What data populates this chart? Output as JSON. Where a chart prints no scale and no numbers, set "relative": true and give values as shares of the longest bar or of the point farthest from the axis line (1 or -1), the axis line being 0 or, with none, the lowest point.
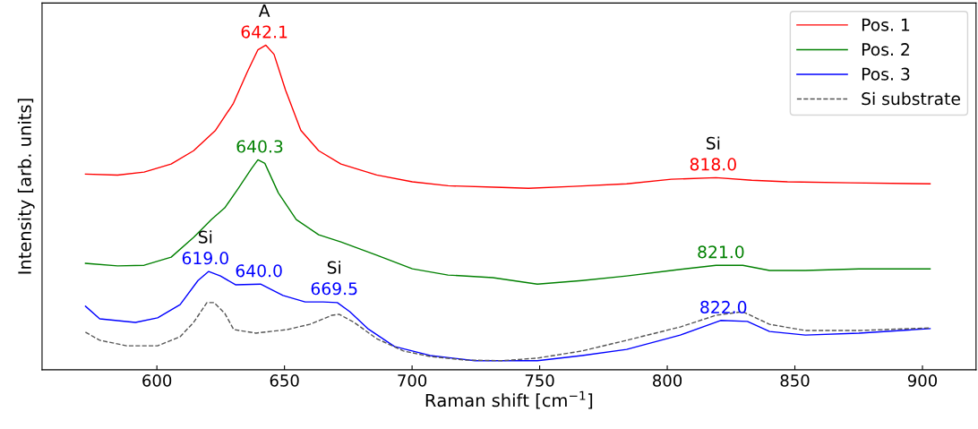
{
  "chart_data": {
    "type": "line",
    "relative": true,
    "xlabel": "Raman shift [cm$^{−1}$]",
    "ylabel": "Intensity [arb. units]",
    "xlim": [
      555,
      921
    ],
    "xticks": [
      600,
      650,
      700,
      750,
      800,
      850,
      900
    ],
    "tick_labels": "x",
    "legend": "top right",
    "grid": false,
    "marker": "none",
    "series": [
      {
        "name": "Pos. 1",
        "color": "#ff0000",
        "line_style": "solid",
        "x": [
          572,
          584.6,
          595,
          605.6,
          614.4,
          623,
          630,
          635.4,
          639.6,
          642.7,
          645.9,
          650.4,
          656.4,
          663.4,
          672.1,
          686.1,
          700.1,
          714.1,
          735.1,
          745.6,
          763.1,
          784.1,
          801.6,
          819.1,
          833.1,
          847.1,
          871.6,
          903
        ],
        "values": [
          0.603,
          0.6,
          0.609,
          0.634,
          0.675,
          0.738,
          0.821,
          0.917,
          0.986,
          1.0,
          0.972,
          0.862,
          0.738,
          0.675,
          0.634,
          0.6,
          0.579,
          0.567,
          0.562,
          0.559,
          0.565,
          0.573,
          0.587,
          0.592,
          0.584,
          0.579,
          0.576,
          0.573
        ]
      },
      {
        "name": "Pos. 2",
        "color": "#008000",
        "line_style": "solid",
        "x": [
          572,
          584.6,
          595,
          605.6,
          614.4,
          621.4,
          626.6,
          631.9,
          637.1,
          639.6,
          642.3,
          647.6,
          654.6,
          663.4,
          672.1,
          686.1,
          700.1,
          714.1,
          731.6,
          749.1,
          766.6,
          784.1,
          801.6,
          819.1,
          829.6,
          840.1,
          854.1,
          875.1,
          903
        ],
        "values": [
          0.328,
          0.32,
          0.322,
          0.347,
          0.408,
          0.463,
          0.499,
          0.559,
          0.62,
          0.647,
          0.636,
          0.545,
          0.463,
          0.416,
          0.394,
          0.353,
          0.311,
          0.292,
          0.284,
          0.264,
          0.275,
          0.289,
          0.306,
          0.322,
          0.322,
          0.306,
          0.306,
          0.311,
          0.311
        ]
      },
      {
        "name": "Pos. 3",
        "color": "#0000ff",
        "line_style": "solid",
        "x": [
          572,
          577.6,
          591.6,
          600.3,
          609.1,
          616.1,
          620.3,
          624.9,
          630.8,
          640.6,
          649.4,
          658.1,
          665.1,
          670.7,
          675.6,
          682.6,
          693.1,
          707.1,
          724.6,
          735.1,
          749.1,
          766.6,
          784.1,
          805.1,
          820.9,
          831.4,
          840.1,
          854.1,
          875.1,
          903
        ],
        "values": [
          0.196,
          0.157,
          0.146,
          0.16,
          0.201,
          0.275,
          0.303,
          0.289,
          0.262,
          0.264,
          0.229,
          0.209,
          0.209,
          0.207,
          0.179,
          0.127,
          0.072,
          0.044,
          0.028,
          0.028,
          0.028,
          0.044,
          0.063,
          0.107,
          0.152,
          0.149,
          0.118,
          0.107,
          0.113,
          0.127
        ]
      },
      {
        "name": "Si substrate",
        "color": "#555555",
        "line_style": "dashed",
        "x": [
          572,
          577.6,
          588.1,
          600.3,
          609.1,
          614.4,
          619.6,
          622.4,
          626.6,
          630.1,
          638.8,
          651.1,
          659.9,
          668.6,
          671.4,
          677.3,
          686.1,
          696.6,
          707.1,
          721.1,
          735.1,
          749.1,
          766.6,
          784.1,
          805.1,
          819.1,
          829.6,
          840.1,
          854.1,
          875.1,
          903
        ],
        "values": [
          0.116,
          0.091,
          0.074,
          0.074,
          0.102,
          0.146,
          0.207,
          0.207,
          0.174,
          0.124,
          0.113,
          0.124,
          0.14,
          0.168,
          0.171,
          0.146,
          0.096,
          0.058,
          0.041,
          0.03,
          0.028,
          0.036,
          0.058,
          0.091,
          0.132,
          0.168,
          0.179,
          0.14,
          0.121,
          0.121,
          0.129
        ]
      }
    ],
    "annotations": [
      {
        "text": "642.1",
        "x": 642.1,
        "y": 1.0
      },
      {
        "text": "A",
        "x": 642.1,
        "y": 1.0
      },
      {
        "text": "818.0",
        "x": 818.0,
        "y": 0.592
      },
      {
        "text": "Si",
        "x": 818.0,
        "y": 0.592
      },
      {
        "text": "640.3",
        "x": 640.3,
        "y": 0.647
      },
      {
        "text": "821.0",
        "x": 821.0,
        "y": 0.322
      },
      {
        "text": "619.0",
        "x": 619.0,
        "y": 0.303
      },
      {
        "text": "Si",
        "x": 619.0,
        "y": 0.303
      },
      {
        "text": "640.0",
        "x": 640.0,
        "y": 0.264
      },
      {
        "text": "669.5",
        "x": 669.5,
        "y": 0.209
      },
      {
        "text": "Si",
        "x": 669.5,
        "y": 0.209
      },
      {
        "text": "822.0",
        "x": 822.0,
        "y": 0.152
      }
    ]
  }
}
